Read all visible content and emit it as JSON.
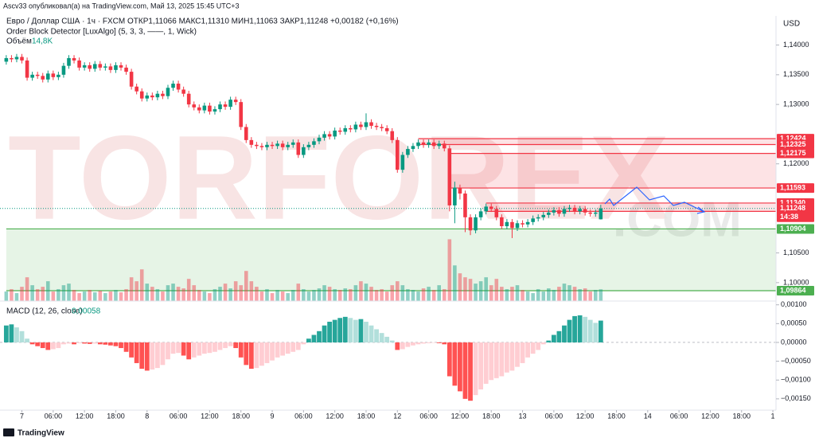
{
  "chart_data": {
    "type": "candlestick",
    "header": {
      "publisher": "Ascv33 опубликовал(а) на TradingView.com, Май 13, 2025 15:45 UTC+3",
      "symbol": "Евро / Доллар США · 1ч · FXCM",
      "ohlc": "ОТКР1,11066  МАКС1,11310  МИН1,11063  ЗАКР1,11248  +0,00182 (+0,16%)",
      "indicator": "Order Block Detector [LuxAlgo] (5, 3, 3, ——, 1, Wick)",
      "volume_title": "Объём",
      "volume_label": "14,8K"
    },
    "currency": "USD",
    "colors": {
      "up": "#089981",
      "down": "#f23645"
    },
    "open": [
      1.1372,
      1.1378,
      1.1376,
      1.138,
      1.1374,
      1.1345,
      1.135,
      1.1348,
      1.1342,
      1.1352,
      1.1346,
      1.135,
      1.1365,
      1.1378,
      1.1374,
      1.1362,
      1.1366,
      1.136,
      1.1368,
      1.1362,
      1.1364,
      1.1358,
      1.1366,
      1.1362,
      1.1355,
      1.133,
      1.1322,
      1.131,
      1.1315,
      1.1312,
      1.1318,
      1.1314,
      1.1328,
      1.1335,
      1.1325,
      1.1318,
      1.13,
      1.1295,
      1.129,
      1.1298,
      1.1288,
      1.1292,
      1.13,
      1.1296,
      1.1308,
      1.1304,
      1.1262,
      1.124,
      1.1232,
      1.123,
      1.1228,
      1.1232,
      1.123,
      1.1234,
      1.1228,
      1.1232,
      1.1236,
      1.1215,
      1.1228,
      1.1232,
      1.1238,
      1.1244,
      1.125,
      1.1246,
      1.1256,
      1.1254,
      1.126,
      1.1258,
      1.1266,
      1.1262,
      1.127,
      1.1264,
      1.1262,
      1.126,
      1.1255,
      1.124,
      1.119,
      1.1215,
      1.1225,
      1.123,
      1.1236,
      1.1232,
      1.1236,
      1.123,
      1.1234,
      1.1226,
      1.113,
      1.116,
      1.115,
      1.111,
      1.1088,
      1.111,
      1.112,
      1.1128,
      1.1124,
      1.111,
      1.1095,
      1.1102,
      1.1092,
      1.11,
      1.1098,
      1.1102,
      1.1108,
      1.111,
      1.1114,
      1.1118,
      1.1122,
      1.1116,
      1.1124,
      1.1126,
      1.112,
      1.1124,
      1.1118,
      1.1116,
      1.11066
    ],
    "high": [
      1.1383,
      1.1383,
      1.1385,
      1.1385,
      1.1379,
      1.1355,
      1.1355,
      1.1353,
      1.1357,
      1.1357,
      1.1355,
      1.137,
      1.1383,
      1.1383,
      1.1379,
      1.1371,
      1.1371,
      1.1373,
      1.1373,
      1.1369,
      1.1369,
      1.1371,
      1.1371,
      1.1367,
      1.136,
      1.1335,
      1.1327,
      1.132,
      1.132,
      1.1323,
      1.1323,
      1.1333,
      1.134,
      1.134,
      1.133,
      1.1323,
      1.1305,
      1.13,
      1.1303,
      1.1303,
      1.1297,
      1.1305,
      1.1305,
      1.1313,
      1.1313,
      1.1309,
      1.1267,
      1.1245,
      1.1237,
      1.1235,
      1.1237,
      1.1237,
      1.1239,
      1.1239,
      1.1237,
      1.1241,
      1.1241,
      1.1233,
      1.1237,
      1.1243,
      1.1249,
      1.1255,
      1.1255,
      1.1261,
      1.1261,
      1.1265,
      1.1265,
      1.1271,
      1.1271,
      1.1285,
      1.1275,
      1.1269,
      1.1267,
      1.1265,
      1.126,
      1.1245,
      1.122,
      1.123,
      1.1235,
      1.1241,
      1.1241,
      1.1241,
      1.1241,
      1.1239,
      1.1239,
      1.1231,
      1.117,
      1.1165,
      1.1155,
      1.1115,
      1.1115,
      1.1125,
      1.1133,
      1.1133,
      1.1129,
      1.1115,
      1.1107,
      1.1107,
      1.1105,
      1.1105,
      1.1107,
      1.1113,
      1.1115,
      1.1119,
      1.1123,
      1.1127,
      1.1127,
      1.1129,
      1.1131,
      1.1131,
      1.1129,
      1.1129,
      1.1123,
      1.1123,
      1.1131
    ],
    "low": [
      1.1367,
      1.1371,
      1.1371,
      1.1369,
      1.134,
      1.134,
      1.1343,
      1.1337,
      1.1337,
      1.1341,
      1.1341,
      1.1345,
      1.136,
      1.1369,
      1.1357,
      1.1357,
      1.1355,
      1.1355,
      1.1357,
      1.1357,
      1.1353,
      1.1353,
      1.1357,
      1.135,
      1.1325,
      1.1317,
      1.1305,
      1.1305,
      1.1307,
      1.1307,
      1.1309,
      1.1309,
      1.1323,
      1.132,
      1.1313,
      1.1295,
      1.129,
      1.1285,
      1.1285,
      1.1283,
      1.1283,
      1.1287,
      1.1291,
      1.1291,
      1.1299,
      1.1257,
      1.1235,
      1.1227,
      1.1225,
      1.1223,
      1.1223,
      1.1225,
      1.1225,
      1.1223,
      1.1223,
      1.1227,
      1.121,
      1.121,
      1.1223,
      1.1227,
      1.1233,
      1.1239,
      1.1241,
      1.1241,
      1.1249,
      1.1249,
      1.1253,
      1.1253,
      1.1257,
      1.1257,
      1.1259,
      1.1257,
      1.1255,
      1.125,
      1.1235,
      1.1185,
      1.1185,
      1.121,
      1.122,
      1.1225,
      1.1227,
      1.1227,
      1.1225,
      1.1225,
      1.1221,
      1.112,
      1.11,
      1.114,
      1.1085,
      1.108,
      1.1083,
      1.1105,
      1.1115,
      1.1119,
      1.1105,
      1.109,
      1.109,
      1.1075,
      1.1087,
      1.1093,
      1.1093,
      1.1097,
      1.1103,
      1.1105,
      1.1109,
      1.1113,
      1.1111,
      1.1111,
      1.1119,
      1.1115,
      1.1115,
      1.1113,
      1.1111,
      1.1111,
      1.11063
    ],
    "close": [
      1.1378,
      1.1376,
      1.138,
      1.1374,
      1.1345,
      1.135,
      1.1348,
      1.1342,
      1.1352,
      1.1346,
      1.135,
      1.1365,
      1.1378,
      1.1374,
      1.1362,
      1.1366,
      1.136,
      1.1368,
      1.1362,
      1.1364,
      1.1358,
      1.1366,
      1.1362,
      1.1355,
      1.133,
      1.1322,
      1.131,
      1.1315,
      1.1312,
      1.1318,
      1.1314,
      1.1328,
      1.1335,
      1.1325,
      1.1318,
      1.13,
      1.1295,
      1.129,
      1.1298,
      1.1288,
      1.1292,
      1.13,
      1.1296,
      1.1308,
      1.1304,
      1.1262,
      1.124,
      1.1232,
      1.123,
      1.1228,
      1.1232,
      1.123,
      1.1234,
      1.1228,
      1.1232,
      1.1236,
      1.1215,
      1.1228,
      1.1232,
      1.1238,
      1.1244,
      1.125,
      1.1246,
      1.1256,
      1.1254,
      1.126,
      1.1258,
      1.1266,
      1.1262,
      1.127,
      1.1264,
      1.1262,
      1.126,
      1.1255,
      1.124,
      1.119,
      1.1215,
      1.1225,
      1.123,
      1.1236,
      1.1232,
      1.1236,
      1.123,
      1.1234,
      1.1226,
      1.113,
      1.116,
      1.115,
      1.111,
      1.1088,
      1.111,
      1.112,
      1.1128,
      1.1124,
      1.111,
      1.1095,
      1.1102,
      1.1092,
      1.11,
      1.1098,
      1.1102,
      1.1108,
      1.111,
      1.1114,
      1.1118,
      1.1122,
      1.1116,
      1.1124,
      1.1126,
      1.112,
      1.1124,
      1.1118,
      1.1116,
      1.1118,
      1.11248
    ],
    "volume": [
      12,
      15,
      10,
      18,
      30,
      20,
      15,
      18,
      25,
      12,
      15,
      20,
      22,
      14,
      10,
      12,
      14,
      11,
      13,
      10,
      12,
      14,
      11,
      15,
      30,
      25,
      40,
      22,
      18,
      15,
      12,
      20,
      22,
      18,
      16,
      28,
      20,
      14,
      12,
      10,
      15,
      18,
      22,
      16,
      25,
      20,
      38,
      25,
      18,
      12,
      15,
      10,
      14,
      12,
      10,
      14,
      22,
      15,
      12,
      14,
      16,
      20,
      18,
      15,
      14,
      16,
      15,
      20,
      25,
      22,
      18,
      14,
      15,
      12,
      20,
      25,
      20,
      15,
      14,
      12,
      16,
      18,
      14,
      20,
      15,
      78,
      45,
      35,
      30,
      28,
      22,
      25,
      30,
      20,
      28,
      18,
      15,
      18,
      20,
      14,
      12,
      10,
      15,
      12,
      16,
      14,
      18,
      22,
      20,
      18,
      15,
      16,
      12,
      14,
      14.8
    ],
    "volume_lim": [
      0,
      360
    ],
    "xlim": [
      -1.2,
      147.6
    ],
    "xticks": [
      {
        "value": 3,
        "label": "7"
      },
      {
        "value": 9,
        "label": "06:00"
      },
      {
        "value": 15,
        "label": "12:00"
      },
      {
        "value": 21,
        "label": "18:00"
      },
      {
        "value": 27,
        "label": "8"
      },
      {
        "value": 33,
        "label": "06:00"
      },
      {
        "value": 39,
        "label": "12:00"
      },
      {
        "value": 45,
        "label": "18:00"
      },
      {
        "value": 51,
        "label": "9"
      },
      {
        "value": 57,
        "label": "06:00"
      },
      {
        "value": 63,
        "label": "12:00"
      },
      {
        "value": 69,
        "label": "18:00"
      },
      {
        "value": 75,
        "label": "12"
      },
      {
        "value": 81,
        "label": "06:00"
      },
      {
        "value": 87,
        "label": "12:00"
      },
      {
        "value": 93,
        "label": "18:00"
      },
      {
        "value": 99,
        "label": "13"
      },
      {
        "value": 105,
        "label": "06:00"
      },
      {
        "value": 111,
        "label": "12:00"
      },
      {
        "value": 117,
        "label": "18:00"
      },
      {
        "value": 123,
        "label": "14"
      },
      {
        "value": 129,
        "label": "06:00"
      },
      {
        "value": 135,
        "label": "12:00"
      },
      {
        "value": 141,
        "label": "18:00"
      },
      {
        "value": 147,
        "label": "1"
      }
    ],
    "ylim": [
      1.0969,
      1.1449
    ],
    "yticks": [
      {
        "value": 1.14,
        "label": "1,14000"
      },
      {
        "value": 1.135,
        "label": "1,13500"
      },
      {
        "value": 1.13,
        "label": "1,13000"
      },
      {
        "value": 1.12,
        "label": "1,12000"
      },
      {
        "value": 1.105,
        "label": "1,10500"
      },
      {
        "value": 1.1,
        "label": "1,10000"
      }
    ],
    "order_blocks": [
      {
        "start": 79,
        "color": "#f23645",
        "top": {
          "value": 1.12424,
          "label": "1,12424"
        },
        "bottom": {
          "value": 1.12325,
          "label": "1,12325"
        }
      },
      {
        "start": 85,
        "color": "#f23645",
        "top": {
          "value": 1.12175,
          "label": "1,12175"
        },
        "bottom": {
          "value": 1.11593,
          "label": "1,11593"
        }
      },
      {
        "start": 92,
        "color": "#f23645",
        "top": {
          "value": 1.1134,
          "label": "1,11340"
        },
        "bottom": {
          "value": 1.112,
          "label": "1,11200"
        }
      },
      {
        "start": 0,
        "color": "#4caf50",
        "top": {
          "value": 1.10904,
          "label": "1,10904"
        },
        "bottom": {
          "value": 1.09864,
          "label": "1,09864"
        }
      }
    ],
    "last_price": {
      "value": 1.11248,
      "label": "1,11248",
      "time": "14:38",
      "color": "#f23645"
    },
    "macd": {
      "title": "MACD (12, 26, close)",
      "last_label": "0,00058",
      "colors": {
        "up_strong": "#26a69a",
        "up_weak": "#b2dfdb",
        "down_strong": "#ff5252",
        "down_weak": "#ffcdd2"
      },
      "values": [
        0.00045,
        0.00048,
        0.0004,
        0.0003,
        0.0001,
        -5e-05,
        -0.0001,
        -0.00015,
        -0.0002,
        -0.00018,
        -0.00015,
        -5e-05,
        -3e-05,
        -5e-05,
        -2e-05,
        -3e-05,
        -4e-05,
        -3e-05,
        -5e-05,
        -6e-05,
        -8e-05,
        -0.0001,
        -0.00015,
        -0.00025,
        -0.0004,
        -0.00055,
        -0.0007,
        -0.00075,
        -0.00072,
        -0.00068,
        -0.0006,
        -0.00045,
        -0.0003,
        -0.00028,
        -0.00035,
        -0.00045,
        -0.0004,
        -0.00035,
        -0.0003,
        -0.00028,
        -0.00025,
        -0.0002,
        -0.00015,
        -0.0001,
        -0.00015,
        -0.0004,
        -0.0006,
        -0.0007,
        -0.00068,
        -0.00062,
        -0.00055,
        -0.00048,
        -0.0004,
        -0.00035,
        -0.0003,
        -0.00025,
        -0.0002,
        -5e-05,
        0.0001,
        0.0002,
        0.0003,
        0.00045,
        0.00055,
        0.0006,
        0.00065,
        0.00068,
        0.00065,
        0.0006,
        0.00062,
        0.00055,
        0.00045,
        0.00035,
        0.00025,
        0.00015,
        5e-05,
        -0.0002,
        -0.00018,
        -0.00012,
        -8e-05,
        -5e-05,
        -3e-05,
        -2e-05,
        -1e-05,
        -2e-05,
        -5e-05,
        -0.0009,
        -0.00115,
        -0.0013,
        -0.0015,
        -0.00155,
        -0.0014,
        -0.00125,
        -0.0011,
        -0.001,
        -0.00095,
        -0.0009,
        -0.0008,
        -0.00075,
        -0.00065,
        -0.00055,
        -0.0004,
        -0.0003,
        -0.0002,
        -5e-05,
        5e-05,
        0.0002,
        0.0003,
        0.00045,
        0.0006,
        0.0007,
        0.00072,
        0.00068,
        0.0006,
        0.00052,
        0.00058
      ],
      "ylim": [
        -0.0018,
        0.0011
      ],
      "yticks": [
        {
          "value": 0.001,
          "label": "0,00100"
        },
        {
          "value": 0.0005,
          "label": "0,00050"
        },
        {
          "value": 0,
          "label": "0,00000"
        },
        {
          "value": -0.0005,
          "label": "−0,00050"
        },
        {
          "value": -0.001,
          "label": "−0,00100"
        },
        {
          "value": -0.0015,
          "label": "−0,00150"
        }
      ]
    },
    "watermark": {
      "main": "TORFOREX",
      "suffix": ".COM"
    },
    "footer": "TradingView"
  }
}
